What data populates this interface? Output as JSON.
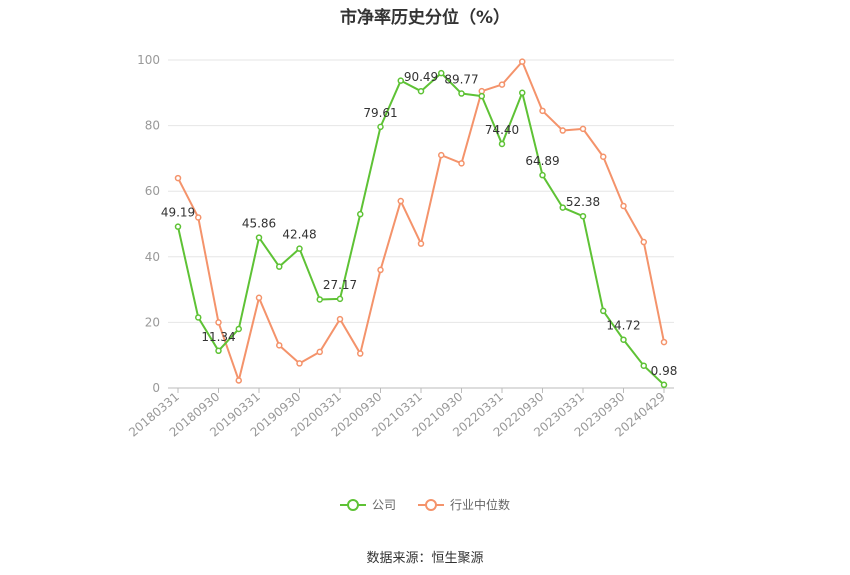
{
  "chart_data": {
    "type": "line",
    "title": "市净率历史分位（%）",
    "ylim": [
      0,
      100
    ],
    "yticks": [
      0,
      20,
      40,
      60,
      80,
      100
    ],
    "grid": true,
    "legend_position": "bottom",
    "x": [
      "20180331",
      "20180630",
      "20180930",
      "20181231",
      "20190331",
      "20190630",
      "20190930",
      "20191231",
      "20200331",
      "20200630",
      "20200930",
      "20201231",
      "20210331",
      "20210630",
      "20210930",
      "20211231",
      "20220331",
      "20220630",
      "20220930",
      "20221231",
      "20230331",
      "20230630",
      "20230930",
      "20231231",
      "20240429"
    ],
    "x_tick_labels": [
      "20180331",
      "20180930",
      "20190331",
      "20190930",
      "20200331",
      "20200930",
      "20210331",
      "20210930",
      "20220331",
      "20220930",
      "20230331",
      "20230930",
      "20240429"
    ],
    "series": [
      {
        "name": "公司",
        "color": "#5ec235",
        "values": [
          49.19,
          21.5,
          11.34,
          18.0,
          45.86,
          37.0,
          42.48,
          27.0,
          27.17,
          53.0,
          79.61,
          93.7,
          90.49,
          96.0,
          89.77,
          89.0,
          74.4,
          90.0,
          64.89,
          55.0,
          52.38,
          23.5,
          14.72,
          6.8,
          0.98
        ],
        "labels": {
          "0": "49.19",
          "2": "11.34",
          "4": "45.86",
          "6": "42.48",
          "8": "27.17",
          "10": "79.61",
          "12": "90.49",
          "14": "89.77",
          "16": "74.40",
          "18": "64.89",
          "20": "52.38",
          "22": "14.72",
          "24": "0.98"
        }
      },
      {
        "name": "行业中位数",
        "color": "#f4936b",
        "values": [
          64.0,
          52.0,
          20.0,
          2.3,
          27.5,
          13.0,
          7.5,
          11.0,
          21.0,
          10.5,
          36.0,
          57.0,
          44.0,
          71.0,
          68.5,
          90.5,
          92.5,
          99.5,
          84.5,
          78.5,
          79.0,
          70.5,
          55.5,
          44.5,
          14.0
        ]
      }
    ]
  },
  "legend": {
    "company": "公司",
    "industry": "行业中位数"
  },
  "source": "数据来源：恒生聚源"
}
